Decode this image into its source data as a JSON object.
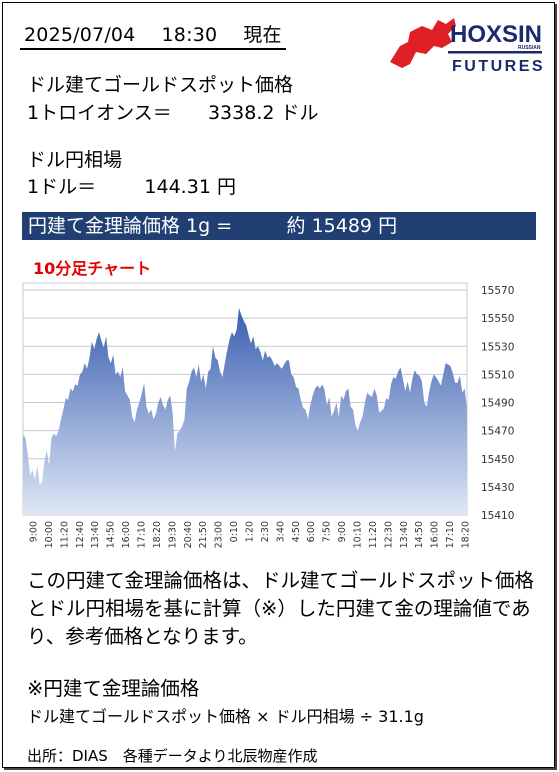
{
  "header": {
    "date": "2025/07/04",
    "time": "18:30",
    "now_label": "現在"
  },
  "logo": {
    "text": "HOXSIN",
    "small_text": "RUSSIAN",
    "subtext": "FUTURES",
    "accent_color": "#e01e25",
    "text_color": "#1a2a6c"
  },
  "gold": {
    "title": "ドル建てゴールドスポット価格",
    "unit_label": "1トロイオンス＝",
    "value": "3338.2",
    "unit": "ドル"
  },
  "fx": {
    "title": "ドル円相場",
    "unit_label": "1ドル＝",
    "value": "144.31",
    "unit": "円"
  },
  "yen_price": {
    "label": "円建て金理論価格 1g =",
    "approx": "約",
    "value": "15489",
    "unit": "円",
    "bar_color": "#213f73"
  },
  "chart_data": {
    "type": "area",
    "title": "10分足チャート",
    "x_ticks": [
      "9:00",
      "10:00",
      "11:20",
      "12:40",
      "13:40",
      "14:50",
      "16:00",
      "17:10",
      "18:20",
      "19:30",
      "20:40",
      "21:50",
      "23:00",
      "0:10",
      "1:20",
      "2:30",
      "3:40",
      "4:50",
      "6:00",
      "7:50",
      "9:00",
      "10:10",
      "11:20",
      "12:30",
      "13:40",
      "14:50",
      "16:00",
      "17:10",
      "18:20"
    ],
    "y_ticks": [
      15410,
      15430,
      15450,
      15470,
      15490,
      15510,
      15530,
      15550,
      15570
    ],
    "ylim": [
      15410,
      15575
    ],
    "values": [
      15467,
      15465,
      15453,
      15438,
      15442,
      15435,
      15445,
      15432,
      15433,
      15448,
      15456,
      15445,
      15465,
      15468,
      15466,
      15470,
      15478,
      15485,
      15493,
      15492,
      15500,
      15498,
      15503,
      15502,
      15510,
      15512,
      15518,
      15514,
      15522,
      15533,
      15528,
      15535,
      15540,
      15534,
      15529,
      15537,
      15522,
      15518,
      15524,
      15510,
      15512,
      15508,
      15515,
      15498,
      15495,
      15492,
      15480,
      15476,
      15485,
      15490,
      15496,
      15504,
      15487,
      15482,
      15485,
      15478,
      15482,
      15490,
      15494,
      15488,
      15485,
      15492,
      15495,
      15483,
      15455,
      15468,
      15470,
      15473,
      15478,
      15500,
      15505,
      15512,
      15515,
      15508,
      15517,
      15505,
      15510,
      15500,
      15512,
      15514,
      15530,
      15522,
      15520,
      15512,
      15508,
      15518,
      15527,
      15535,
      15540,
      15537,
      15542,
      15557,
      15552,
      15548,
      15545,
      15538,
      15532,
      15537,
      15528,
      15530,
      15526,
      15520,
      15527,
      15522,
      15523,
      15520,
      15516,
      15518,
      15516,
      15514,
      15517,
      15520,
      15520,
      15510,
      15508,
      15501,
      15500,
      15492,
      15486,
      15485,
      15478,
      15488,
      15495,
      15500,
      15502,
      15500,
      15503,
      15499,
      15488,
      15494,
      15480,
      15484,
      15490,
      15480,
      15495,
      15492,
      15498,
      15500,
      15487,
      15485,
      15474,
      15470,
      15476,
      15480,
      15490,
      15497,
      15495,
      15494,
      15500,
      15495,
      15483,
      15484,
      15486,
      15493,
      15492,
      15503,
      15508,
      15507,
      15512,
      15515,
      15507,
      15498,
      15505,
      15497,
      15507,
      15513,
      15510,
      15509,
      15505,
      15490,
      15487,
      15497,
      15505,
      15510,
      15508,
      15505,
      15502,
      15510,
      15518,
      15517,
      15516,
      15511,
      15504,
      15504,
      15509,
      15497,
      15500,
      15485
    ],
    "fill_top_color": "#3a5fb0",
    "fill_bottom_color": "#dfe7f6",
    "grid_color": "#c8c8c8"
  },
  "note": {
    "paragraph": "この円建て金理論価格は、ドル建てゴールドスポット価格とドル円相場を基に計算（※）した円建て金の理論値であり、参考価格となります。",
    "formula_title": "※円建て金理論価格",
    "formula": "ドル建てゴールドスポット価格 × ドル円相場 ÷ 31.1g"
  },
  "source": {
    "text": "出所：DIAS　各種データより北辰物産作成"
  }
}
